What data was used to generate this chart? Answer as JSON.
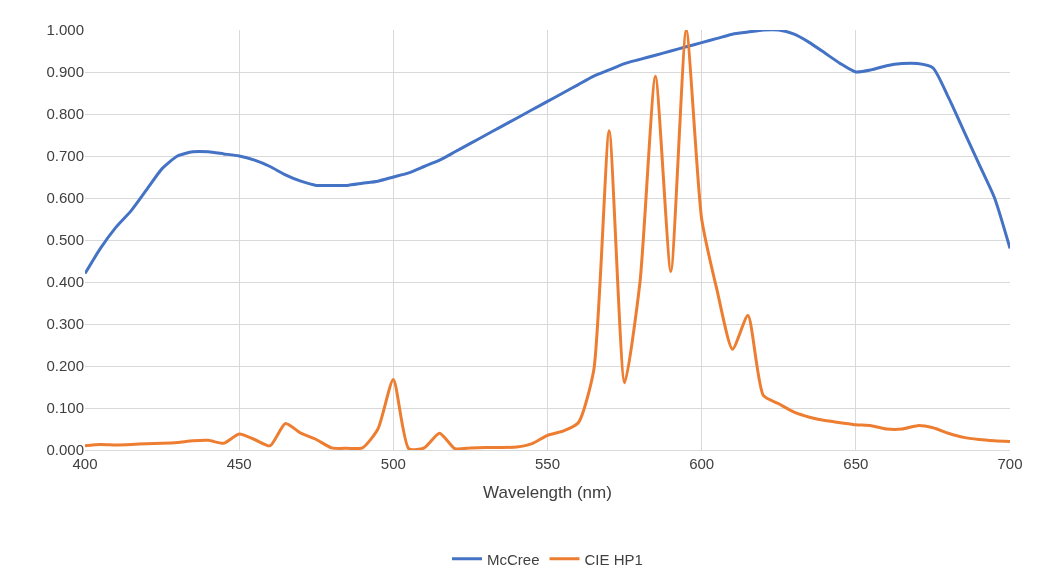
{
  "chart_data": {
    "type": "line",
    "xlabel": "Wavelength (nm)",
    "x": [
      400,
      405,
      410,
      415,
      420,
      425,
      430,
      435,
      440,
      445,
      450,
      455,
      460,
      465,
      470,
      475,
      480,
      485,
      490,
      495,
      500,
      505,
      510,
      515,
      520,
      525,
      530,
      535,
      540,
      545,
      550,
      555,
      560,
      565,
      570,
      575,
      580,
      585,
      590,
      595,
      600,
      605,
      610,
      615,
      620,
      625,
      630,
      635,
      640,
      645,
      650,
      655,
      660,
      665,
      670,
      675,
      680,
      685,
      690,
      695,
      700
    ],
    "series": [
      {
        "name": "McCree",
        "color": "#4472c4",
        "values": [
          0.42,
          0.48,
          0.53,
          0.57,
          0.62,
          0.67,
          0.7,
          0.71,
          0.71,
          0.705,
          0.7,
          0.69,
          0.675,
          0.655,
          0.64,
          0.63,
          0.63,
          0.63,
          0.635,
          0.64,
          0.65,
          0.66,
          0.675,
          0.69,
          0.71,
          0.73,
          0.75,
          0.77,
          0.79,
          0.81,
          0.83,
          0.85,
          0.87,
          0.89,
          0.905,
          0.92,
          0.93,
          0.94,
          0.95,
          0.96,
          0.97,
          0.98,
          0.99,
          0.995,
          1.0,
          1.0,
          0.99,
          0.97,
          0.945,
          0.92,
          0.9,
          0.905,
          0.915,
          0.92,
          0.92,
          0.91,
          0.84,
          0.76,
          0.68,
          0.6,
          0.48
        ]
      },
      {
        "name": "CIE HP1",
        "color": "#ed7d31",
        "values": [
          0.01,
          0.013,
          0.012,
          0.013,
          0.015,
          0.016,
          0.018,
          0.022,
          0.023,
          0.016,
          0.038,
          0.025,
          0.01,
          0.063,
          0.04,
          0.025,
          0.005,
          0.004,
          0.005,
          0.05,
          0.168,
          0.003,
          0.005,
          0.04,
          0.003,
          0.005,
          0.006,
          0.006,
          0.007,
          0.015,
          0.035,
          0.045,
          0.065,
          0.19,
          0.76,
          0.16,
          0.4,
          0.89,
          0.425,
          1.0,
          0.55,
          0.38,
          0.24,
          0.32,
          0.13,
          0.11,
          0.09,
          0.078,
          0.07,
          0.065,
          0.06,
          0.058,
          0.05,
          0.05,
          0.058,
          0.053,
          0.04,
          0.03,
          0.025,
          0.022,
          0.02
        ]
      }
    ],
    "xlim": [
      400,
      700
    ],
    "xticks": [
      400,
      450,
      500,
      550,
      600,
      650,
      700
    ],
    "ylim": [
      0,
      1.0
    ],
    "yticks": [
      {
        "value": 0,
        "label": "0.000"
      },
      {
        "value": 0.1,
        "label": "0.100"
      },
      {
        "value": 0.2,
        "label": "0.200"
      },
      {
        "value": 0.3,
        "label": "0.300"
      },
      {
        "value": 0.4,
        "label": "0.400"
      },
      {
        "value": 0.5,
        "label": "0.500"
      },
      {
        "value": 0.6,
        "label": "0.600"
      },
      {
        "value": 0.7,
        "label": "0.700"
      },
      {
        "value": 0.8,
        "label": "0.800"
      },
      {
        "value": 0.9,
        "label": "0.900"
      },
      {
        "value": 1.0,
        "label": "1.000"
      }
    ],
    "grid": true,
    "legend": "bottom",
    "marker": "none",
    "line_style": "solid"
  }
}
